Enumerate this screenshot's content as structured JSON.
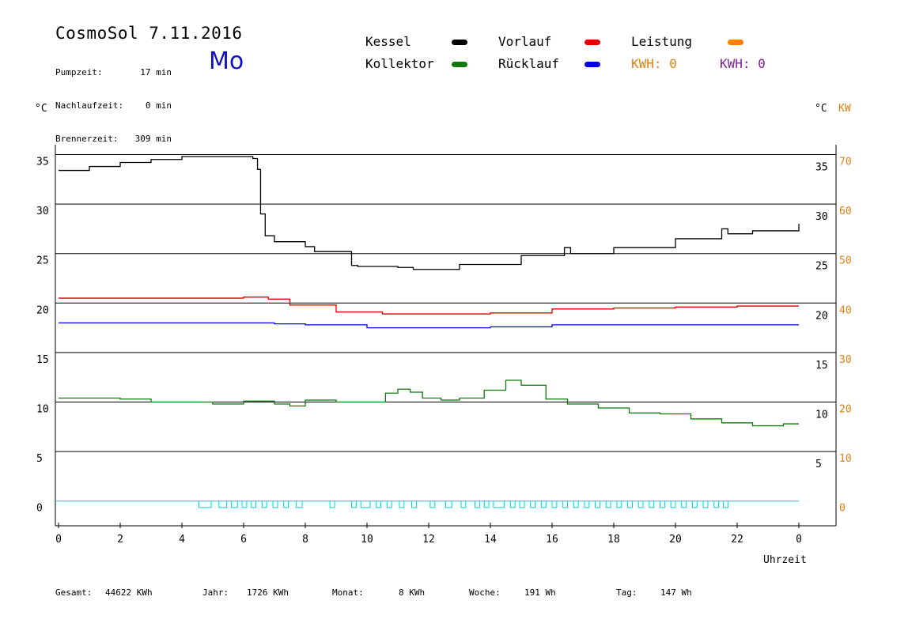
{
  "header": {
    "title": "CosmoSol 7.11.2016",
    "day": "Mo",
    "stats": [
      {
        "label": "Pumpzeit:",
        "value": "17 min"
      },
      {
        "label": "Nachlaufzeit:",
        "value": "0 min"
      },
      {
        "label": "Brennerzeit:",
        "value": "309 min"
      }
    ]
  },
  "legend": {
    "items": [
      {
        "label": "Kessel",
        "color": "#000000"
      },
      {
        "label": "Kollektor",
        "color": "#0a7a0a"
      },
      {
        "label": "Vorlauf",
        "color": "#e00000"
      },
      {
        "label": "Rücklauf",
        "color": "#0000e0"
      },
      {
        "label": "Leistung",
        "color": "#ff8000"
      }
    ],
    "kwh_orange": "KWH: 0",
    "kwh_purple": "KWH: 0",
    "kwh_orange_color": "#e08010",
    "kwh_purple_color": "#8020a0"
  },
  "axes": {
    "left_unit": "°C",
    "right_unit_c": "°C",
    "right_unit_kw": "KW",
    "x_label": "Uhrzeit"
  },
  "footer": [
    {
      "label": "Gesamt:",
      "value": "44622 KWh"
    },
    {
      "label": "Jahr:",
      "value": "1726 KWh"
    },
    {
      "label": "Monat:",
      "value": "8 KWh"
    },
    {
      "label": "Woche:",
      "value": "191 Wh"
    },
    {
      "label": "Tag:",
      "value": "147 Wh"
    }
  ],
  "chart_data": {
    "type": "line",
    "title": "CosmoSol 7.11.2016",
    "xlabel": "Uhrzeit",
    "ylabel": "°C",
    "y2label": "KW",
    "xlim": [
      0,
      24
    ],
    "ylim": [
      -2.5,
      36
    ],
    "x_ticks": [
      "0",
      "2",
      "4",
      "6",
      "8",
      "10",
      "12",
      "14",
      "16",
      "18",
      "20",
      "22",
      "0"
    ],
    "y_ticks_left": [
      0,
      5,
      10,
      15,
      20,
      25,
      30,
      35
    ],
    "y_ticks_right_c": [
      5,
      10,
      15,
      20,
      25,
      30,
      35
    ],
    "y_ticks_right_kw": [
      0,
      10,
      20,
      30,
      40,
      50,
      60,
      70
    ],
    "grid": true,
    "legend_position": "top",
    "series": [
      {
        "name": "Kessel",
        "color": "#000000",
        "x": [
          0,
          1,
          2,
          3,
          4,
          5,
          6,
          6.3,
          6.45,
          6.55,
          6.7,
          7,
          8,
          8.3,
          9.5,
          9.7,
          11,
          11.5,
          13,
          15,
          16.4,
          16.6,
          18,
          20,
          21.5,
          21.7,
          22.5,
          24
        ],
        "y": [
          33.4,
          33.8,
          34.2,
          34.5,
          34.8,
          34.8,
          34.8,
          34.6,
          33.5,
          29,
          26.8,
          26.2,
          25.7,
          25.2,
          23.8,
          23.7,
          23.6,
          23.4,
          23.9,
          24.8,
          25.6,
          25.0,
          25.6,
          26.5,
          27.5,
          27.0,
          27.3,
          28.0
        ]
      },
      {
        "name": "Vorlauf",
        "color": "#e00000",
        "x": [
          0,
          6,
          6.8,
          7.5,
          9,
          10.5,
          12,
          14,
          16,
          18,
          20,
          22,
          24
        ],
        "y": [
          20.5,
          20.6,
          20.4,
          19.8,
          19.1,
          18.9,
          18.9,
          19.0,
          19.4,
          19.5,
          19.6,
          19.7,
          19.7
        ]
      },
      {
        "name": "Rücklauf",
        "color": "#0000e0",
        "x": [
          0,
          6,
          7,
          8,
          10,
          11,
          12,
          14,
          16,
          18,
          20,
          24
        ],
        "y": [
          18.0,
          18.0,
          17.9,
          17.8,
          17.5,
          17.5,
          17.5,
          17.6,
          17.8,
          17.8,
          17.8,
          17.8
        ]
      },
      {
        "name": "Kollektor",
        "color": "#0a7a0a",
        "x": [
          0,
          2,
          3,
          5,
          6,
          7,
          7.5,
          8,
          9,
          10,
          10.6,
          11,
          11.4,
          11.8,
          12.4,
          13,
          13.8,
          14.5,
          15,
          15.8,
          16.5,
          17.5,
          18.5,
          19.5,
          20.5,
          21.5,
          22.5,
          23.5,
          24
        ],
        "y": [
          10.4,
          10.3,
          10.0,
          9.8,
          10.1,
          9.8,
          9.6,
          10.2,
          10.0,
          10.0,
          10.9,
          11.3,
          11.0,
          10.4,
          10.2,
          10.4,
          11.2,
          12.2,
          11.7,
          10.3,
          9.8,
          9.4,
          8.9,
          8.8,
          8.3,
          7.9,
          7.6,
          7.8,
          7.8
        ]
      }
    ],
    "pump_series": {
      "name": "Pumpe",
      "color": "#00d0d0",
      "on_intervals": [
        [
          4.55,
          4.95
        ],
        [
          5.2,
          5.45
        ],
        [
          5.6,
          5.8
        ],
        [
          5.95,
          6.1
        ],
        [
          6.25,
          6.4
        ],
        [
          6.6,
          6.75
        ],
        [
          6.95,
          7.1
        ],
        [
          7.3,
          7.45
        ],
        [
          7.7,
          7.9
        ],
        [
          8.8,
          8.95
        ],
        [
          9.5,
          9.65
        ],
        [
          9.8,
          10.1
        ],
        [
          10.3,
          10.45
        ],
        [
          10.65,
          10.8
        ],
        [
          11.05,
          11.2
        ],
        [
          11.45,
          11.6
        ],
        [
          12.05,
          12.2
        ],
        [
          12.55,
          12.75
        ],
        [
          13.05,
          13.2
        ],
        [
          13.5,
          13.65
        ],
        [
          13.8,
          13.95
        ],
        [
          14.1,
          14.45
        ],
        [
          14.65,
          14.8
        ],
        [
          14.95,
          15.1
        ],
        [
          15.3,
          15.45
        ],
        [
          15.65,
          15.8
        ],
        [
          16.0,
          16.15
        ],
        [
          16.35,
          16.5
        ],
        [
          16.7,
          16.85
        ],
        [
          17.05,
          17.2
        ],
        [
          17.4,
          17.55
        ],
        [
          17.75,
          17.9
        ],
        [
          18.1,
          18.25
        ],
        [
          18.45,
          18.6
        ],
        [
          18.8,
          18.95
        ],
        [
          19.15,
          19.3
        ],
        [
          19.5,
          19.65
        ],
        [
          19.85,
          20.0
        ],
        [
          20.2,
          20.35
        ],
        [
          20.55,
          20.7
        ],
        [
          20.9,
          21.05
        ],
        [
          21.25,
          21.4
        ],
        [
          21.55,
          21.7
        ]
      ]
    }
  }
}
